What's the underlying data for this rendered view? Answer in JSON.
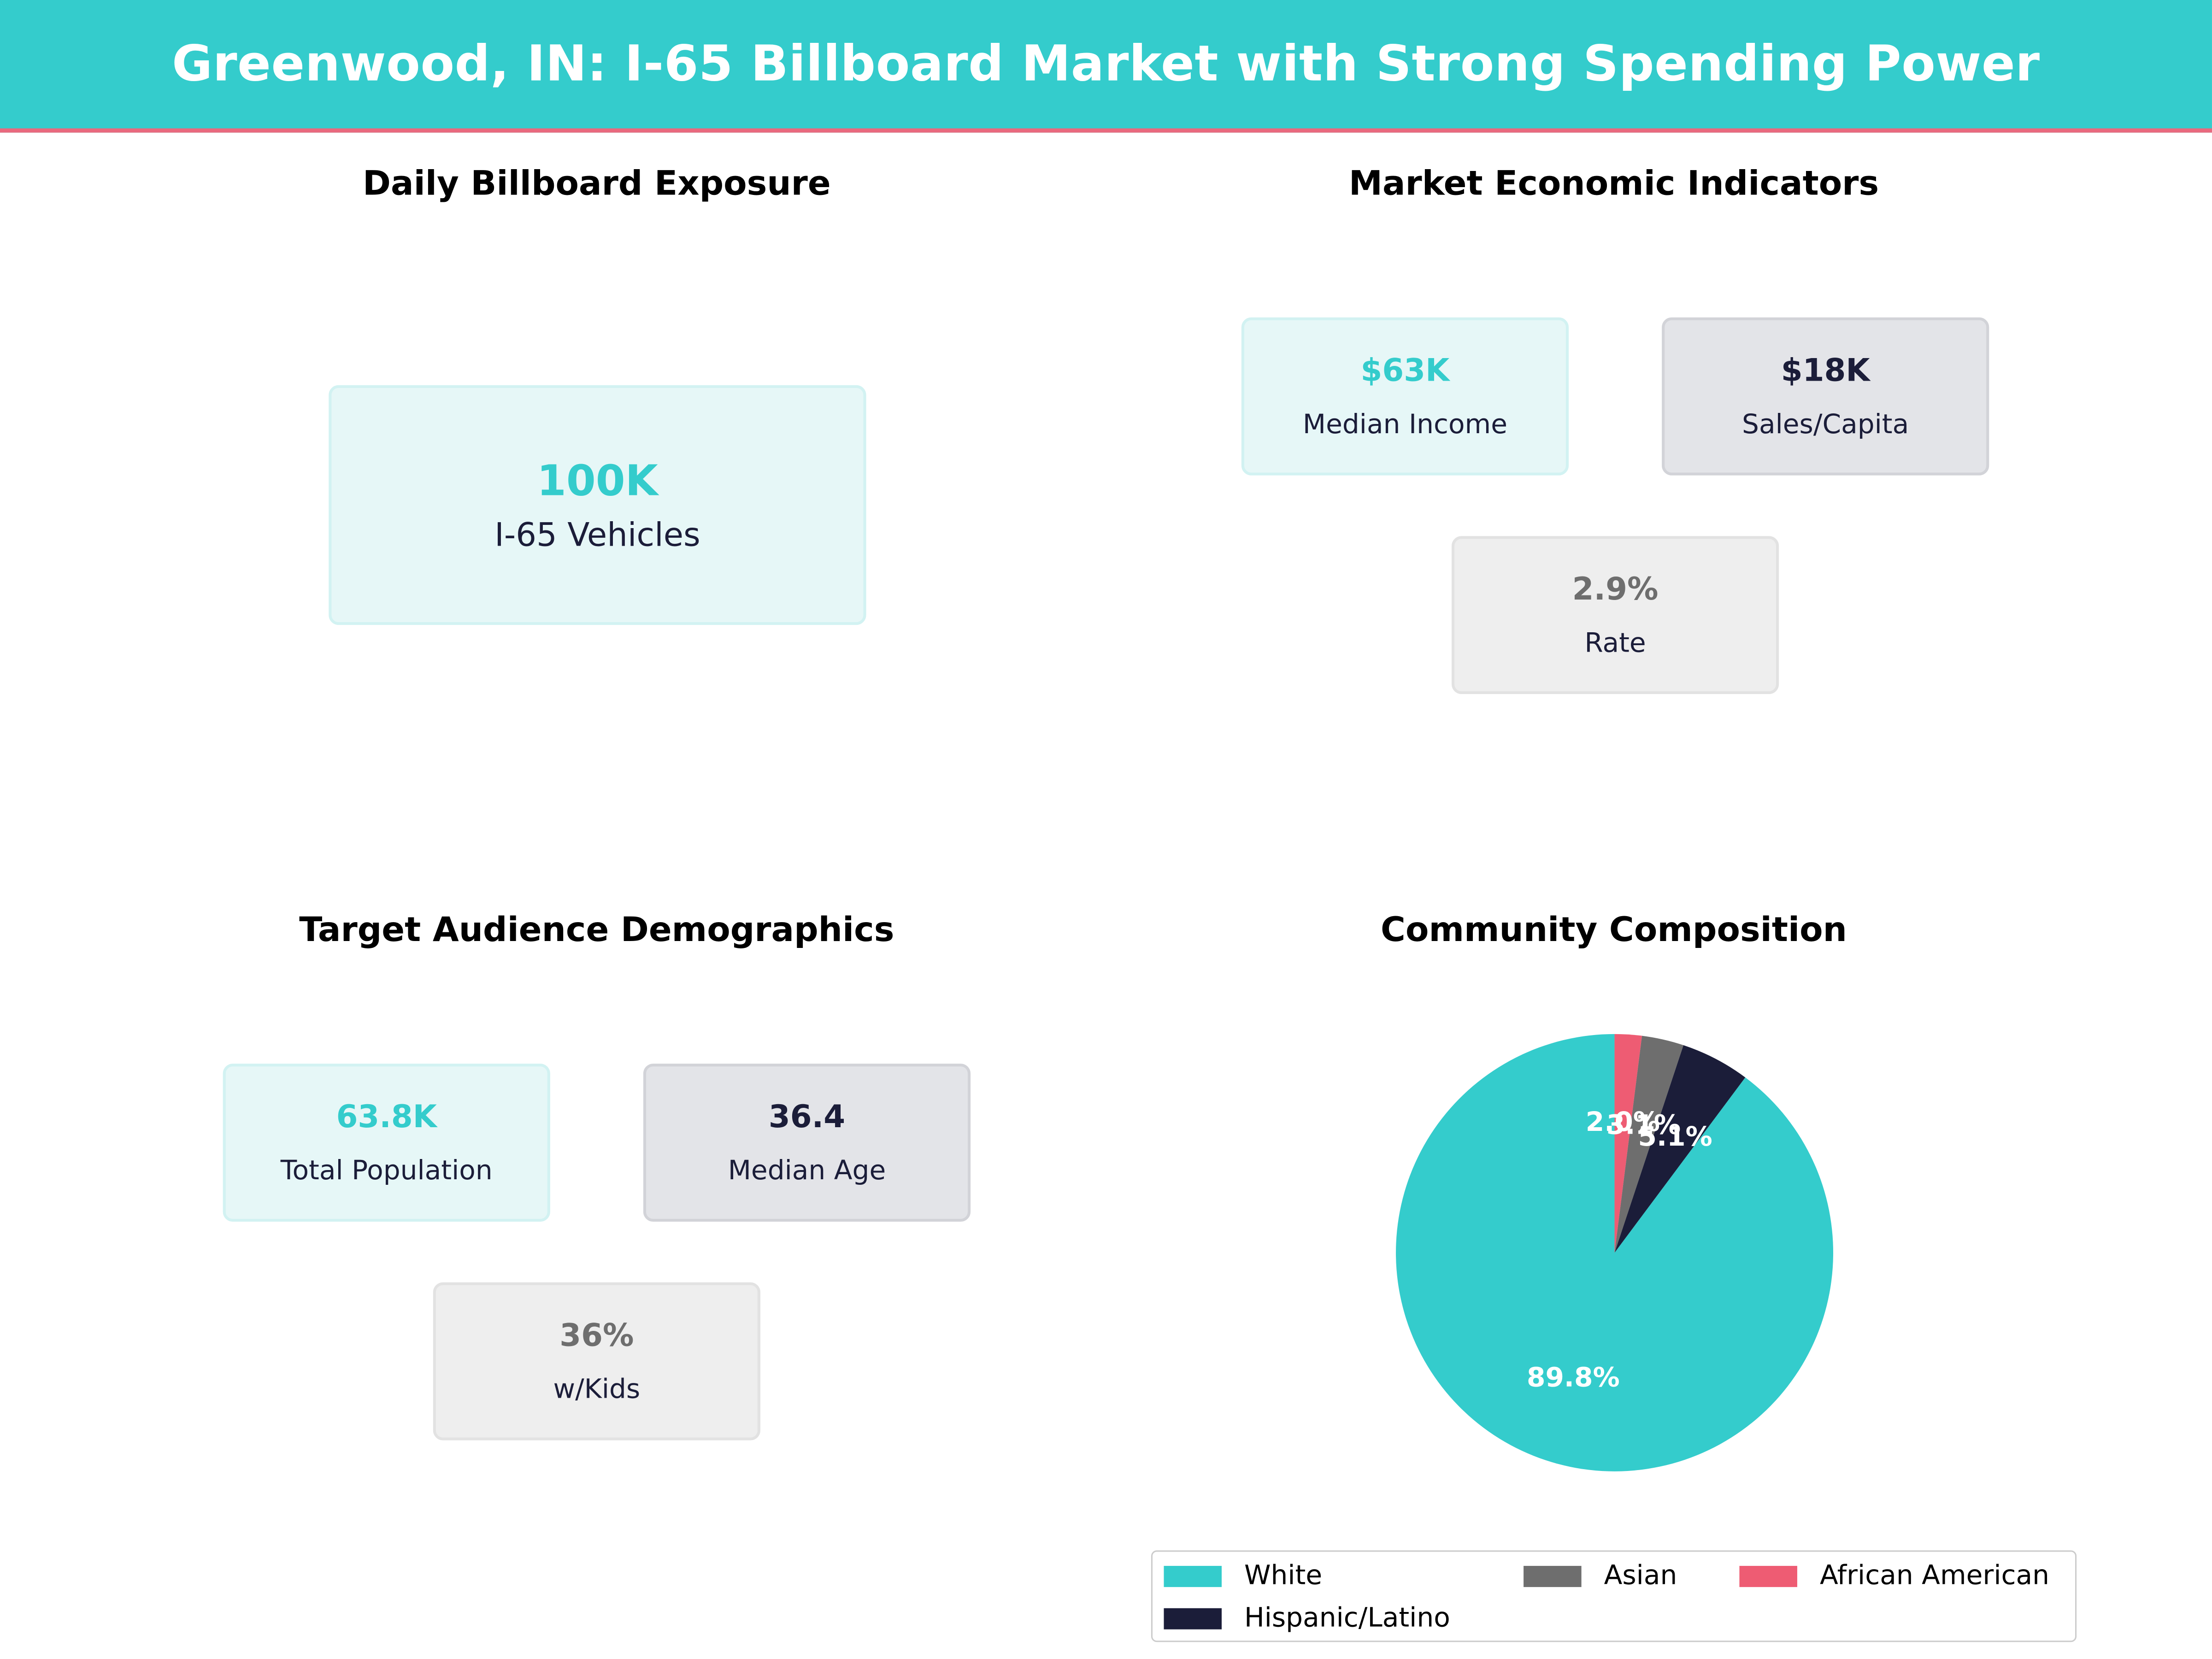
{
  "header": {
    "title": "Greenwood, IN: I-65 Billboard Market with Strong Spending Power",
    "background": "#34CCCC",
    "accent": "#E9697E"
  },
  "exposure": {
    "title": "Daily Billboard Exposure",
    "card": {
      "value": "100K",
      "label": "I-65 Vehicles"
    }
  },
  "economic": {
    "title": "Market Economic Indicators",
    "cards": [
      {
        "value": "$63K",
        "label": "Median Income"
      },
      {
        "value": "$18K",
        "label": "Sales/Capita"
      },
      {
        "value": "2.9%",
        "label": "Rate"
      }
    ]
  },
  "demographics": {
    "title": "Target Audience Demographics",
    "cards": [
      {
        "value": "63.8K",
        "label": "Total Population"
      },
      {
        "value": "36.4",
        "label": "Median Age"
      },
      {
        "value": "36%",
        "label": "w/Kids"
      }
    ]
  },
  "chart_data": {
    "type": "pie",
    "title": "Community Composition",
    "categories": [
      "White",
      "Hispanic/Latino",
      "Asian",
      "African American"
    ],
    "values": [
      89.8,
      5.1,
      3.1,
      2.0
    ],
    "labels": [
      "89.8%",
      "5.1%",
      "3.1%",
      "2.0%"
    ],
    "colors": [
      "#34CCCC",
      "#1B1D39",
      "#6E6E6E",
      "#EE5C73"
    ],
    "start_angle_deg": 90,
    "direction": "counterclockwise",
    "legend_position": "bottom"
  }
}
